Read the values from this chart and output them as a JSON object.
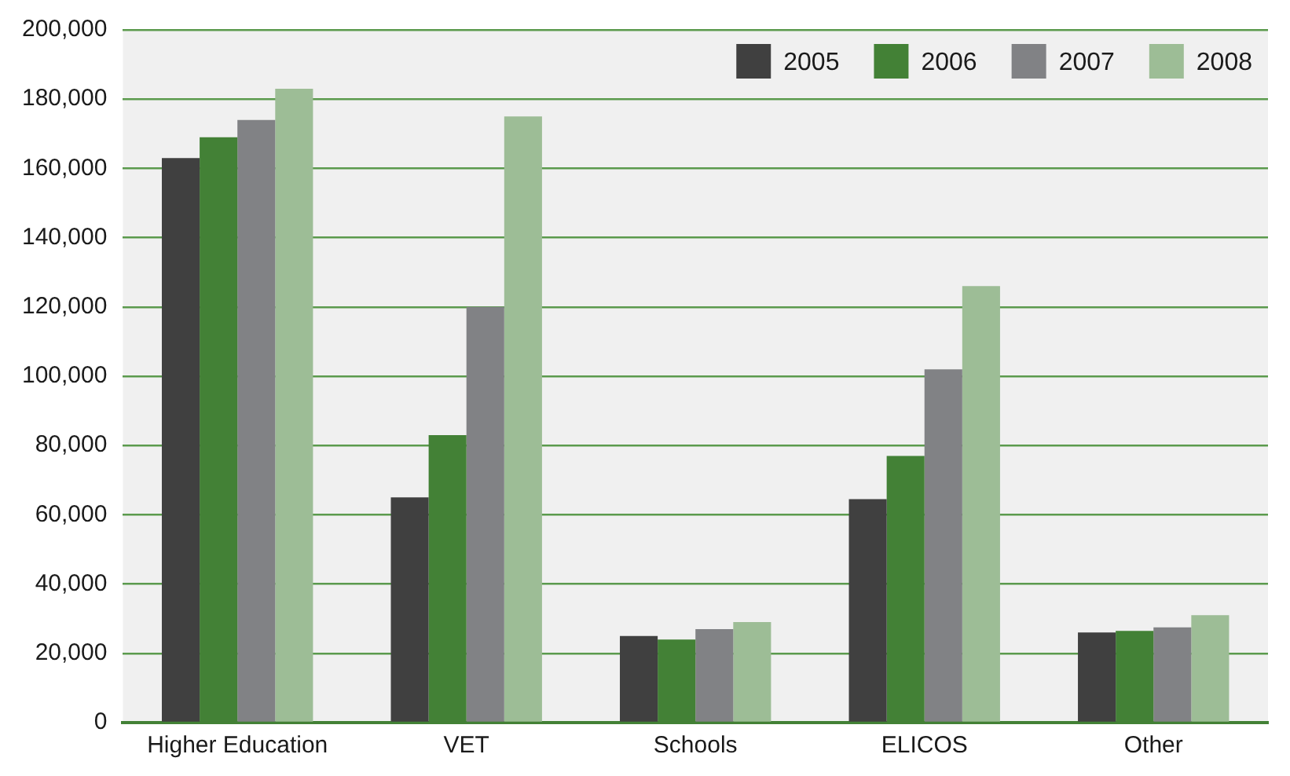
{
  "chart_data": {
    "type": "bar",
    "categories": [
      "Higher Education",
      "VET",
      "Schools",
      "ELICOS",
      "Other"
    ],
    "series": [
      {
        "name": "2005",
        "color": "#404040",
        "values": [
          163000,
          65000,
          25000,
          64500,
          26000
        ]
      },
      {
        "name": "2006",
        "color": "#438136",
        "values": [
          169000,
          83000,
          24000,
          77000,
          26500
        ]
      },
      {
        "name": "2007",
        "color": "#818285",
        "values": [
          174000,
          120000,
          27000,
          102000,
          27500
        ]
      },
      {
        "name": "2008",
        "color": "#9dbd96",
        "values": [
          183000,
          175000,
          29000,
          126000,
          31000
        ]
      }
    ],
    "ylim": [
      0,
      200000
    ],
    "yticks": [
      {
        "value": 0,
        "label": "0"
      },
      {
        "value": 20000,
        "label": "20,000"
      },
      {
        "value": 40000,
        "label": "40,000"
      },
      {
        "value": 60000,
        "label": "60,000"
      },
      {
        "value": 80000,
        "label": "80,000"
      },
      {
        "value": 100000,
        "label": "100,000"
      },
      {
        "value": 120000,
        "label": "120,000"
      },
      {
        "value": 140000,
        "label": "140,000"
      },
      {
        "value": 160000,
        "label": "160,000"
      },
      {
        "value": 180000,
        "label": "180,000"
      },
      {
        "value": 200000,
        "label": "200,000"
      }
    ],
    "grid": "y",
    "legend": "top right"
  }
}
